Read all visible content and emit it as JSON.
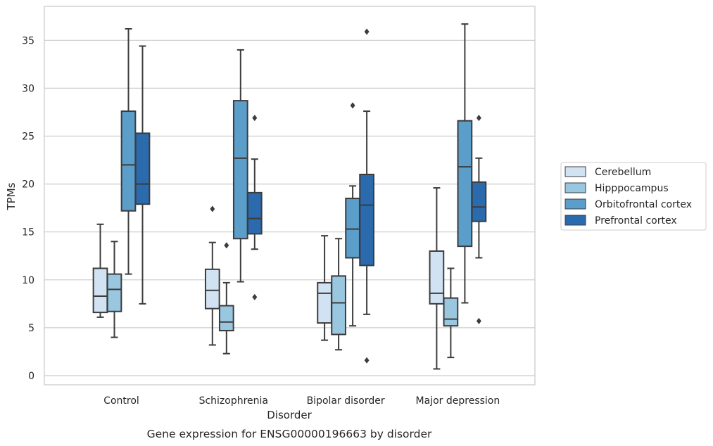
{
  "chart_data": {
    "type": "box",
    "title": "",
    "caption": "Gene expression for ENSG00000196663 by disorder",
    "xlabel": "Disorder",
    "ylabel": "TPMs",
    "ylim": [
      -1,
      38
    ],
    "yticks": [
      0,
      5,
      10,
      15,
      20,
      25,
      30,
      35
    ],
    "grid": "horizontal",
    "legend_position": "right",
    "categories": [
      "Control",
      "Schizophrenia",
      "Bipolar disorder",
      "Major depression"
    ],
    "series": [
      {
        "name": "Cerebellum",
        "color": "#d1e2f2",
        "boxes": [
          {
            "whislo": 6.1,
            "q1": 6.6,
            "med": 8.3,
            "q3": 11.2,
            "whishi": 15.8,
            "fliers": []
          },
          {
            "whislo": 3.2,
            "q1": 7.0,
            "med": 8.9,
            "q3": 11.1,
            "whishi": 13.9,
            "fliers": [
              17.4
            ]
          },
          {
            "whislo": 3.7,
            "q1": 5.5,
            "med": 8.6,
            "q3": 9.7,
            "whishi": 14.6,
            "fliers": []
          },
          {
            "whislo": 0.7,
            "q1": 7.5,
            "med": 8.6,
            "q3": 13.0,
            "whishi": 19.6,
            "fliers": []
          }
        ]
      },
      {
        "name": "Hipppocampus",
        "color": "#9ac7e0",
        "boxes": [
          {
            "whislo": 4.0,
            "q1": 6.7,
            "med": 9.0,
            "q3": 10.6,
            "whishi": 14.0,
            "fliers": []
          },
          {
            "whislo": 2.3,
            "q1": 4.7,
            "med": 5.6,
            "q3": 7.3,
            "whishi": 9.7,
            "fliers": [
              13.6
            ]
          },
          {
            "whislo": 2.7,
            "q1": 4.3,
            "med": 7.6,
            "q3": 10.4,
            "whishi": 14.3,
            "fliers": []
          },
          {
            "whislo": 1.9,
            "q1": 5.2,
            "med": 5.9,
            "q3": 8.1,
            "whishi": 11.2,
            "fliers": []
          }
        ]
      },
      {
        "name": "Orbitofrontal cortex",
        "color": "#5a9ec9",
        "boxes": [
          {
            "whislo": 10.6,
            "q1": 17.2,
            "med": 22.0,
            "q3": 27.6,
            "whishi": 36.2,
            "fliers": []
          },
          {
            "whislo": 9.8,
            "q1": 14.3,
            "med": 22.7,
            "q3": 28.7,
            "whishi": 34.0,
            "fliers": []
          },
          {
            "whislo": 5.2,
            "q1": 12.3,
            "med": 15.3,
            "q3": 18.5,
            "whishi": 19.8,
            "fliers": [
              28.2
            ]
          },
          {
            "whislo": 7.6,
            "q1": 13.5,
            "med": 21.8,
            "q3": 26.6,
            "whishi": 36.7,
            "fliers": []
          }
        ]
      },
      {
        "name": "Prefrontal cortex",
        "color": "#2a6aad",
        "boxes": [
          {
            "whislo": 7.5,
            "q1": 17.9,
            "med": 20.0,
            "q3": 25.3,
            "whishi": 34.4,
            "fliers": []
          },
          {
            "whislo": 13.2,
            "q1": 14.8,
            "med": 16.4,
            "q3": 19.1,
            "whishi": 22.6,
            "fliers": [
              26.9,
              8.2
            ]
          },
          {
            "whislo": 6.4,
            "q1": 11.5,
            "med": 17.8,
            "q3": 21.0,
            "whishi": 27.6,
            "fliers": [
              35.9,
              1.6
            ]
          },
          {
            "whislo": 12.3,
            "q1": 16.1,
            "med": 17.6,
            "q3": 20.2,
            "whishi": 22.7,
            "fliers": [
              26.9,
              5.7
            ]
          }
        ]
      }
    ]
  }
}
